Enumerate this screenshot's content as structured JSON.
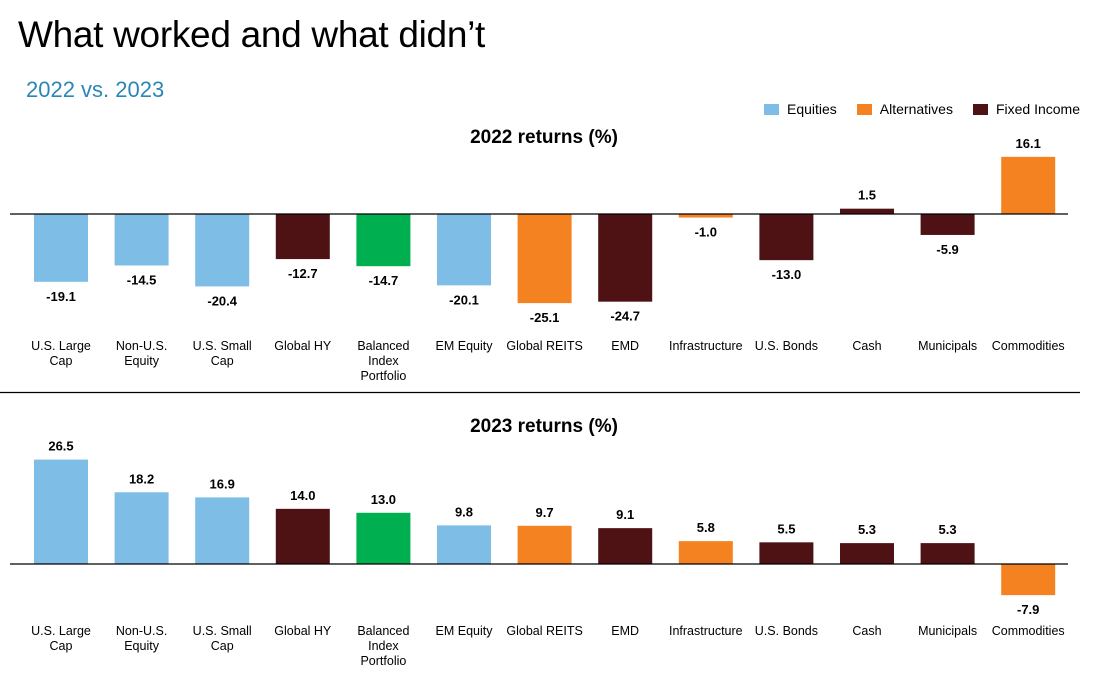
{
  "title": "What worked and what didn’t",
  "subtitle": "2022 vs. 2023",
  "legend": [
    {
      "label": "Equities",
      "color": "#7dbde6"
    },
    {
      "label": "Alternatives",
      "color": "#f58220"
    },
    {
      "label": "Fixed Income",
      "color": "#4e1114"
    }
  ],
  "colors": {
    "equities": "#7dbde6",
    "alternatives": "#f58220",
    "fixed_income": "#4e1114",
    "balanced": "#00b050"
  },
  "chart_data": [
    {
      "type": "bar",
      "title": "2022 returns (%)",
      "categories": [
        "U.S. Large Cap",
        "Non-U.S. Equity",
        "U.S. Small Cap",
        "Global HY",
        "Balanced Index Portfolio",
        "EM Equity",
        "Global REITS",
        "EMD",
        "Infrastructure",
        "U.S. Bonds",
        "Cash",
        "Municipals",
        "Commodities"
      ],
      "category_lines": [
        [
          "U.S. Large",
          "Cap"
        ],
        [
          "Non-U.S.",
          "Equity"
        ],
        [
          "U.S. Small",
          "Cap"
        ],
        [
          "Global HY"
        ],
        [
          "Balanced",
          "Index",
          "Portfolio"
        ],
        [
          "EM Equity"
        ],
        [
          "Global REITS"
        ],
        [
          "EMD"
        ],
        [
          "Infrastructure"
        ],
        [
          "U.S. Bonds"
        ],
        [
          "Cash"
        ],
        [
          "Municipals"
        ],
        [
          "Commodities"
        ]
      ],
      "values": [
        -19.1,
        -14.5,
        -20.4,
        -12.7,
        -14.7,
        -20.1,
        -25.1,
        -24.7,
        -1.0,
        -13.0,
        1.5,
        -5.9,
        16.1
      ],
      "value_labels": [
        "-19.1",
        "-14.5",
        "-20.4",
        "-12.7",
        "-14.7",
        "-20.1",
        "-25.1",
        "-24.7",
        "-1.0",
        "-13.0",
        "1.5",
        "-5.9",
        "16.1"
      ],
      "groups": [
        "equities",
        "equities",
        "equities",
        "fixed_income",
        "balanced",
        "equities",
        "alternatives",
        "fixed_income",
        "alternatives",
        "fixed_income",
        "fixed_income",
        "fixed_income",
        "alternatives"
      ]
    },
    {
      "type": "bar",
      "title": "2023 returns (%)",
      "categories": [
        "U.S. Large Cap",
        "Non-U.S. Equity",
        "U.S. Small Cap",
        "Global HY",
        "Balanced Index Portfolio",
        "EM Equity",
        "Global REITS",
        "EMD",
        "Infrastructure",
        "U.S. Bonds",
        "Cash",
        "Municipals",
        "Commodities"
      ],
      "category_lines": [
        [
          "U.S. Large",
          "Cap"
        ],
        [
          "Non-U.S.",
          "Equity"
        ],
        [
          "U.S. Small",
          "Cap"
        ],
        [
          "Global HY"
        ],
        [
          "Balanced",
          "Index",
          "Portfolio"
        ],
        [
          "EM Equity"
        ],
        [
          "Global REITS"
        ],
        [
          "EMD"
        ],
        [
          "Infrastructure"
        ],
        [
          "U.S. Bonds"
        ],
        [
          "Cash"
        ],
        [
          "Municipals"
        ],
        [
          "Commodities"
        ]
      ],
      "values": [
        26.5,
        18.2,
        16.9,
        14.0,
        13.0,
        9.8,
        9.7,
        9.1,
        5.8,
        5.5,
        5.3,
        5.3,
        -7.9
      ],
      "value_labels": [
        "26.5",
        "18.2",
        "16.9",
        "14.0",
        "13.0",
        "9.8",
        "9.7",
        "9.1",
        "5.8",
        "5.5",
        "5.3",
        "5.3",
        "-7.9"
      ],
      "groups": [
        "equities",
        "equities",
        "equities",
        "fixed_income",
        "balanced",
        "equities",
        "alternatives",
        "fixed_income",
        "alternatives",
        "fixed_income",
        "fixed_income",
        "fixed_income",
        "alternatives"
      ]
    }
  ]
}
